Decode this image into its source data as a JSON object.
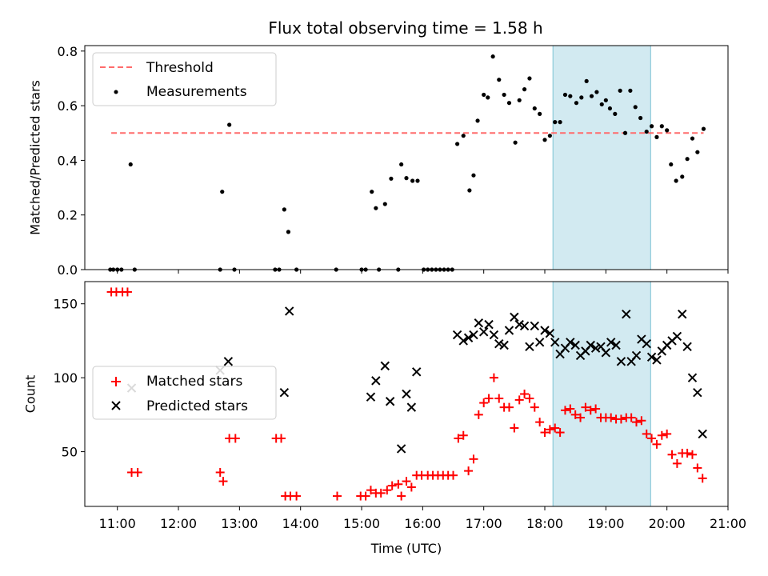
{
  "title": "Flux total observing time = 1.58 h",
  "colors": {
    "threshold": "#ff6b6b",
    "measurements": "#000000",
    "matched": "#ff0000",
    "predicted": "#000000",
    "highlight": "#add8e6"
  },
  "highlight_span": [
    "18:08",
    "19:44"
  ],
  "chart_data": [
    {
      "type": "scatter",
      "ylabel": "Matched/Predicted stars",
      "xlabel": "",
      "xlim": [
        "10:28",
        "21:00"
      ],
      "ylim": [
        0,
        0.82
      ],
      "yticks": [
        "0.0",
        "0.2",
        "0.4",
        "0.6",
        "0.8"
      ],
      "legend": {
        "placement": "top-left",
        "entries": [
          "Threshold",
          "Measurements"
        ]
      },
      "threshold": {
        "name": "Threshold",
        "y": 0.5,
        "x_range": [
          "10:54",
          "20:36"
        ]
      },
      "series": [
        {
          "name": "Measurements",
          "points": [
            [
              "10:53",
              0
            ],
            [
              "10:56",
              0
            ],
            [
              "11:00",
              0
            ],
            [
              "11:04",
              0
            ],
            [
              "11:13",
              0.385
            ],
            [
              "11:17",
              0
            ],
            [
              "12:41",
              0
            ],
            [
              "12:43",
              0.285
            ],
            [
              "12:50",
              0.53
            ],
            [
              "12:55",
              0
            ],
            [
              "13:35",
              0
            ],
            [
              "13:39",
              0
            ],
            [
              "13:44",
              0.22
            ],
            [
              "13:48",
              0.138
            ],
            [
              "13:56",
              0
            ],
            [
              "14:35",
              0
            ],
            [
              "15:00",
              0
            ],
            [
              "15:04",
              0
            ],
            [
              "15:10",
              0.285
            ],
            [
              "15:14",
              0.225
            ],
            [
              "15:17",
              0
            ],
            [
              "15:23",
              0.24
            ],
            [
              "15:29",
              0.333
            ],
            [
              "15:36",
              0
            ],
            [
              "15:39",
              0.385
            ],
            [
              "15:44",
              0.335
            ],
            [
              "15:50",
              0.325
            ],
            [
              "15:55",
              0.325
            ],
            [
              "16:01",
              0
            ],
            [
              "16:05",
              0
            ],
            [
              "16:09",
              0
            ],
            [
              "16:13",
              0
            ],
            [
              "16:17",
              0
            ],
            [
              "16:21",
              0
            ],
            [
              "16:25",
              0
            ],
            [
              "16:29",
              0
            ],
            [
              "16:34",
              0.46
            ],
            [
              "16:40",
              0.49
            ],
            [
              "16:46",
              0.29
            ],
            [
              "16:50",
              0.345
            ],
            [
              "16:54",
              0.545
            ],
            [
              "17:00",
              0.64
            ],
            [
              "17:04",
              0.63
            ],
            [
              "17:09",
              0.78
            ],
            [
              "17:15",
              0.695
            ],
            [
              "17:20",
              0.64
            ],
            [
              "17:25",
              0.61
            ],
            [
              "17:31",
              0.465
            ],
            [
              "17:35",
              0.62
            ],
            [
              "17:40",
              0.66
            ],
            [
              "17:45",
              0.7
            ],
            [
              "17:50",
              0.59
            ],
            [
              "17:55",
              0.57
            ],
            [
              "18:00",
              0.475
            ],
            [
              "18:05",
              0.49
            ],
            [
              "18:10",
              0.54
            ],
            [
              "18:15",
              0.54
            ],
            [
              "18:20",
              0.64
            ],
            [
              "18:25",
              0.635
            ],
            [
              "18:31",
              0.61
            ],
            [
              "18:36",
              0.63
            ],
            [
              "18:41",
              0.69
            ],
            [
              "18:46",
              0.635
            ],
            [
              "18:51",
              0.65
            ],
            [
              "18:56",
              0.605
            ],
            [
              "19:00",
              0.62
            ],
            [
              "19:04",
              0.59
            ],
            [
              "19:09",
              0.57
            ],
            [
              "19:14",
              0.655
            ],
            [
              "19:19",
              0.5
            ],
            [
              "19:24",
              0.655
            ],
            [
              "19:29",
              0.595
            ],
            [
              "19:34",
              0.555
            ],
            [
              "19:40",
              0.505
            ],
            [
              "19:45",
              0.525
            ],
            [
              "19:50",
              0.485
            ],
            [
              "19:55",
              0.525
            ],
            [
              "20:00",
              0.51
            ],
            [
              "20:04",
              0.385
            ],
            [
              "20:09",
              0.325
            ],
            [
              "20:15",
              0.34
            ],
            [
              "20:20",
              0.405
            ],
            [
              "20:25",
              0.48
            ],
            [
              "20:30",
              0.43
            ],
            [
              "20:36",
              0.515
            ]
          ]
        }
      ]
    },
    {
      "type": "scatter",
      "ylabel": "Count",
      "xlabel": "Time (UTC)",
      "xlim": [
        "10:28",
        "21:00"
      ],
      "ylim": [
        13,
        165
      ],
      "yticks": [
        "50",
        "100",
        "150"
      ],
      "xticks": [
        "11:00",
        "12:00",
        "13:00",
        "14:00",
        "15:00",
        "16:00",
        "17:00",
        "18:00",
        "19:00",
        "20:00",
        "21:00"
      ],
      "legend": {
        "placement": "center-left",
        "entries": [
          "Matched stars",
          "Predicted stars"
        ]
      },
      "series": [
        {
          "name": "Matched stars",
          "marker": "+",
          "points": [
            [
              "10:54",
              158
            ],
            [
              "10:59",
              158
            ],
            [
              "11:05",
              158
            ],
            [
              "11:10",
              158
            ],
            [
              "11:14",
              36
            ],
            [
              "11:20",
              36
            ],
            [
              "12:41",
              36
            ],
            [
              "12:44",
              30
            ],
            [
              "12:50",
              59
            ],
            [
              "12:56",
              59
            ],
            [
              "13:36",
              59
            ],
            [
              "13:41",
              59
            ],
            [
              "13:45",
              20
            ],
            [
              "13:50",
              20
            ],
            [
              "13:56",
              20
            ],
            [
              "14:36",
              20
            ],
            [
              "14:59",
              20
            ],
            [
              "15:04",
              20
            ],
            [
              "15:09",
              24
            ],
            [
              "15:14",
              22
            ],
            [
              "15:19",
              22
            ],
            [
              "15:25",
              24
            ],
            [
              "15:30",
              27
            ],
            [
              "15:36",
              28
            ],
            [
              "15:39",
              20
            ],
            [
              "15:44",
              30
            ],
            [
              "15:49",
              26
            ],
            [
              "15:54",
              34
            ],
            [
              "15:59",
              34
            ],
            [
              "16:05",
              34
            ],
            [
              "16:10",
              34
            ],
            [
              "16:15",
              34
            ],
            [
              "16:20",
              34
            ],
            [
              "16:25",
              34
            ],
            [
              "16:30",
              34
            ],
            [
              "16:35",
              59
            ],
            [
              "16:40",
              61
            ],
            [
              "16:45",
              37
            ],
            [
              "16:50",
              45
            ],
            [
              "16:55",
              75
            ],
            [
              "17:00",
              83
            ],
            [
              "17:05",
              86
            ],
            [
              "17:10",
              100
            ],
            [
              "17:15",
              86
            ],
            [
              "17:20",
              80
            ],
            [
              "17:25",
              80
            ],
            [
              "17:30",
              66
            ],
            [
              "17:35",
              85
            ],
            [
              "17:40",
              89
            ],
            [
              "17:45",
              86
            ],
            [
              "17:50",
              80
            ],
            [
              "17:55",
              70
            ],
            [
              "18:00",
              63
            ],
            [
              "18:05",
              65
            ],
            [
              "18:10",
              66
            ],
            [
              "18:15",
              63
            ],
            [
              "18:20",
              78
            ],
            [
              "18:25",
              79
            ],
            [
              "18:30",
              75
            ],
            [
              "18:35",
              73
            ],
            [
              "18:40",
              80
            ],
            [
              "18:45",
              78
            ],
            [
              "18:50",
              79
            ],
            [
              "18:55",
              73
            ],
            [
              "19:00",
              73
            ],
            [
              "19:05",
              73
            ],
            [
              "19:10",
              72
            ],
            [
              "19:15",
              72
            ],
            [
              "19:20",
              73
            ],
            [
              "19:25",
              73
            ],
            [
              "19:30",
              70
            ],
            [
              "19:35",
              71
            ],
            [
              "19:40",
              62
            ],
            [
              "19:45",
              59
            ],
            [
              "19:50",
              55
            ],
            [
              "19:55",
              61
            ],
            [
              "20:00",
              62
            ],
            [
              "20:05",
              48
            ],
            [
              "20:10",
              42
            ],
            [
              "20:15",
              49
            ],
            [
              "20:20",
              49
            ],
            [
              "20:25",
              48
            ],
            [
              "20:30",
              39
            ],
            [
              "20:35",
              32
            ]
          ]
        },
        {
          "name": "Predicted stars",
          "marker": "x",
          "points": [
            [
              "11:14",
              93
            ],
            [
              "12:41",
              105
            ],
            [
              "12:49",
              111
            ],
            [
              "13:44",
              90
            ],
            [
              "13:49",
              145
            ],
            [
              "15:09",
              87
            ],
            [
              "15:14",
              98
            ],
            [
              "15:23",
              108
            ],
            [
              "15:28",
              84
            ],
            [
              "15:39",
              52
            ],
            [
              "15:44",
              89
            ],
            [
              "15:49",
              80
            ],
            [
              "15:54",
              104
            ],
            [
              "16:34",
              129
            ],
            [
              "16:40",
              125
            ],
            [
              "16:45",
              127
            ],
            [
              "16:50",
              129
            ],
            [
              "16:55",
              137
            ],
            [
              "17:00",
              131
            ],
            [
              "17:05",
              136
            ],
            [
              "17:10",
              129
            ],
            [
              "17:15",
              123
            ],
            [
              "17:20",
              122
            ],
            [
              "17:25",
              132
            ],
            [
              "17:30",
              141
            ],
            [
              "17:35",
              136
            ],
            [
              "17:40",
              135
            ],
            [
              "17:45",
              121
            ],
            [
              "17:50",
              135
            ],
            [
              "17:55",
              124
            ],
            [
              "18:00",
              132
            ],
            [
              "18:05",
              130
            ],
            [
              "18:10",
              124
            ],
            [
              "18:15",
              116
            ],
            [
              "18:20",
              120
            ],
            [
              "18:25",
              124
            ],
            [
              "18:30",
              122
            ],
            [
              "18:35",
              115
            ],
            [
              "18:40",
              118
            ],
            [
              "18:45",
              122
            ],
            [
              "18:50",
              120
            ],
            [
              "18:55",
              121
            ],
            [
              "19:00",
              117
            ],
            [
              "19:05",
              124
            ],
            [
              "19:10",
              122
            ],
            [
              "19:15",
              111
            ],
            [
              "19:20",
              143
            ],
            [
              "19:25",
              111
            ],
            [
              "19:30",
              115
            ],
            [
              "19:35",
              126
            ],
            [
              "19:40",
              123
            ],
            [
              "19:45",
              114
            ],
            [
              "19:50",
              112
            ],
            [
              "19:55",
              118
            ],
            [
              "20:00",
              122
            ],
            [
              "20:05",
              125
            ],
            [
              "20:10",
              128
            ],
            [
              "20:15",
              143
            ],
            [
              "20:20",
              121
            ],
            [
              "20:25",
              100
            ],
            [
              "20:30",
              90
            ],
            [
              "20:35",
              62
            ]
          ]
        }
      ]
    }
  ]
}
